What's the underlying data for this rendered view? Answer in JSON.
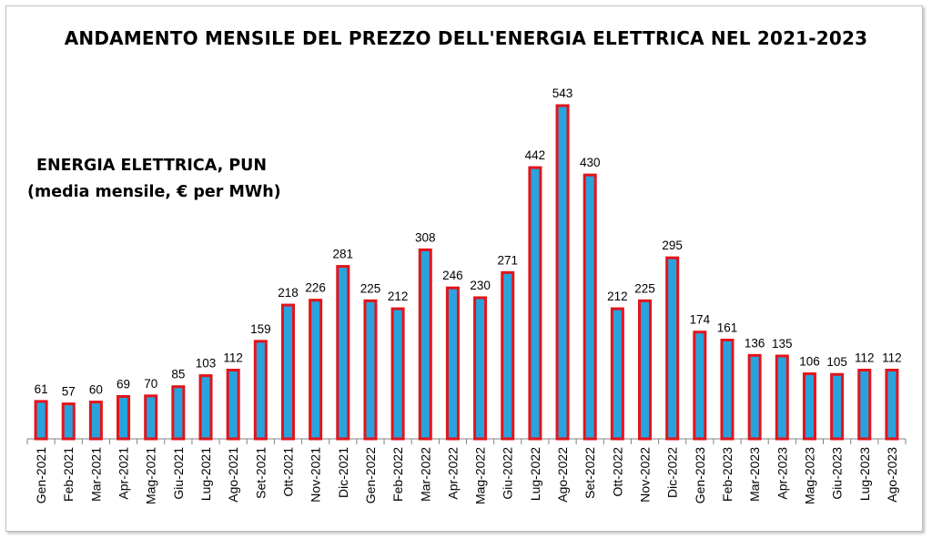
{
  "chart_data": {
    "type": "bar",
    "title": "ANDAMENTO MENSILE DEL PREZZO DELL'ENERGIA ELETTRICA NEL 2021-2023",
    "annotation_line1": "ENERGIA ELETTRICA,  PUN",
    "annotation_line2": "(media mensile, € per MWh)",
    "xlabel": "",
    "ylabel": "",
    "ylim": [
      0,
      543
    ],
    "grid": false,
    "bar_fill": "#29a3dd",
    "bar_stroke": "#e3141b",
    "categories": [
      "Gen-2021",
      "Feb-2021",
      "Mar-2021",
      "Apr-2021",
      "Mag-2021",
      "Giu-2021",
      "Lug-2021",
      "Ago-2021",
      "Set-2021",
      "Ott-2021",
      "Nov-2021",
      "Dic-2021",
      "Gen-2022",
      "Feb-2022",
      "Mar-2022",
      "Apr-2022",
      "Mag-2022",
      "Giu-2022",
      "Lug-2022",
      "Ago-2022",
      "Set-2022",
      "Ott-2022",
      "Nov-2022",
      "Dic-2022",
      "Gen-2023",
      "Feb-2023",
      "Mar-2023",
      "Apr-2023",
      "Mag-2023",
      "Giu-2023",
      "Lug-2023",
      "Ago-2023"
    ],
    "values": [
      61,
      57,
      60,
      69,
      70,
      85,
      103,
      112,
      159,
      218,
      226,
      281,
      225,
      212,
      308,
      246,
      230,
      271,
      442,
      543,
      430,
      212,
      225,
      295,
      174,
      161,
      136,
      135,
      106,
      105,
      112,
      112
    ]
  }
}
